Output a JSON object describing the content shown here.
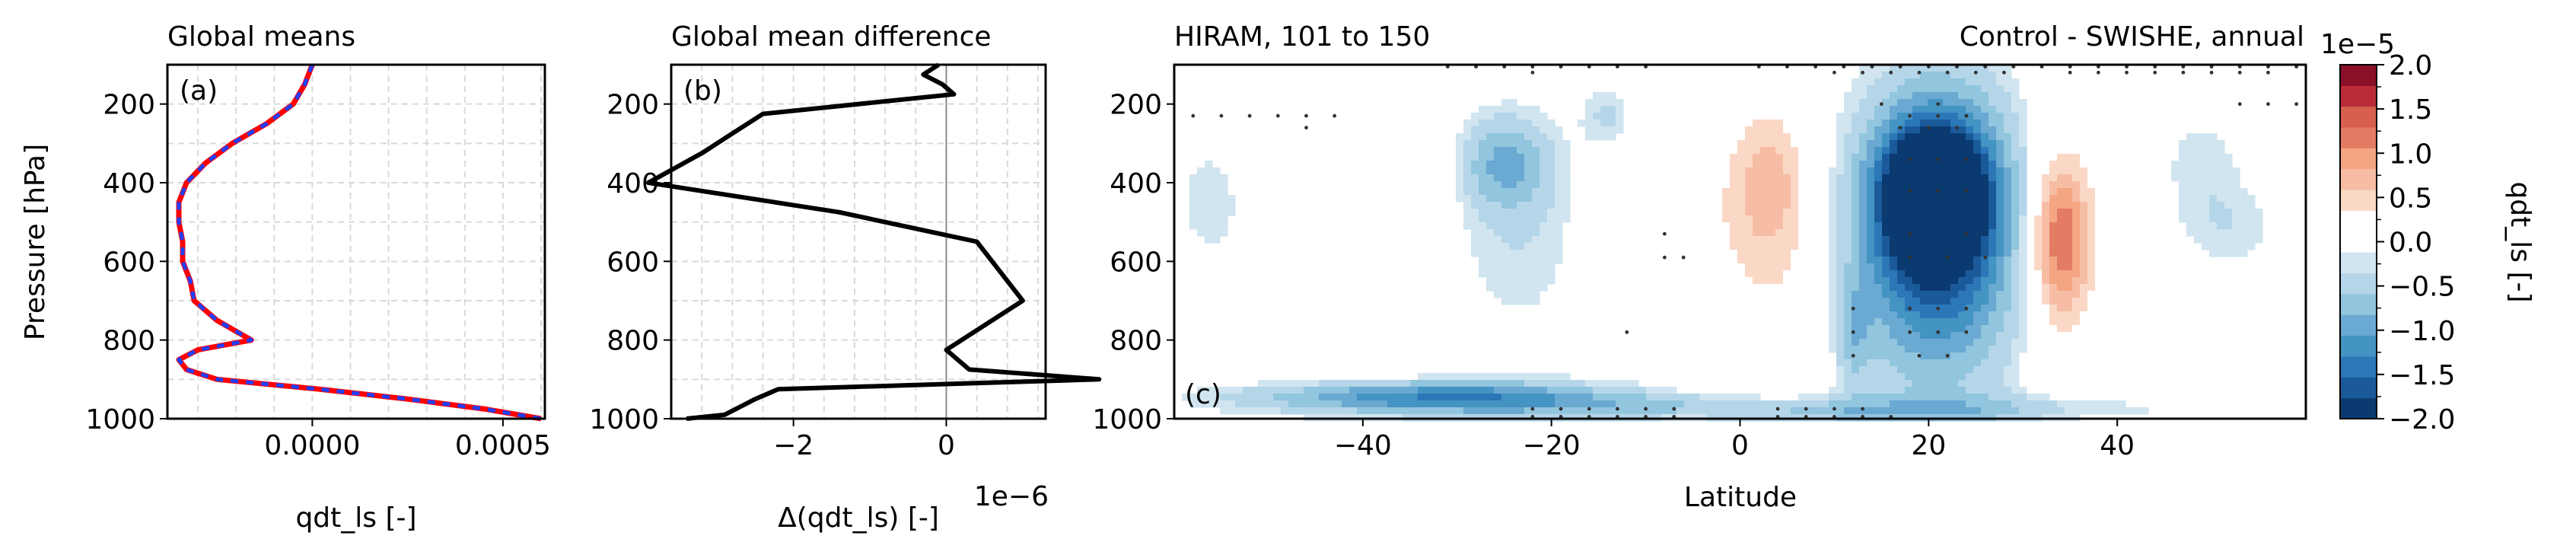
{
  "chart_data": [
    {
      "type": "line",
      "title": "Global means",
      "panel_label": "(a)",
      "xlabel": "qdt_ls [-]",
      "ylabel": "Pressure [hPa]",
      "xlim": [
        -0.00038,
        0.00061
      ],
      "ylim": [
        1000,
        100
      ],
      "xticks": [
        0.0,
        0.0005
      ],
      "xtick_labels": [
        "0.0000",
        "0.0005"
      ],
      "yticks": [
        200,
        400,
        600,
        800,
        1000
      ],
      "grid": true,
      "series": [
        {
          "color": "#ff0000",
          "style": "solid",
          "y": [
            100,
            150,
            200,
            250,
            300,
            350,
            400,
            450,
            500,
            550,
            600,
            650,
            700,
            750,
            800,
            825,
            850,
            875,
            900,
            925,
            950,
            975,
            1000
          ],
          "x": [
            0.0,
            -2e-05,
            -5e-05,
            -0.00012,
            -0.00021,
            -0.00028,
            -0.00033,
            -0.00035,
            -0.00035,
            -0.00034,
            -0.00034,
            -0.00032,
            -0.00031,
            -0.00025,
            -0.00016,
            -0.0003,
            -0.00035,
            -0.00033,
            -0.00025,
            2e-05,
            0.00025,
            0.00045,
            0.0006
          ]
        },
        {
          "color": "#2040ff",
          "style": "dashed",
          "y": [
            100,
            150,
            200,
            250,
            300,
            350,
            400,
            450,
            500,
            550,
            600,
            650,
            700,
            750,
            800,
            825,
            850,
            875,
            900,
            925,
            950,
            975,
            1000
          ],
          "x": [
            0.0,
            -2e-05,
            -5e-05,
            -0.00012,
            -0.00021,
            -0.00028,
            -0.00033,
            -0.00035,
            -0.00035,
            -0.00034,
            -0.00034,
            -0.00032,
            -0.00031,
            -0.00025,
            -0.00016,
            -0.0003,
            -0.00035,
            -0.00033,
            -0.00025,
            2e-05,
            0.00025,
            0.00045,
            0.0006
          ]
        }
      ]
    },
    {
      "type": "line",
      "title": "Global mean difference",
      "panel_label": "(b)",
      "xlabel": "Δ(qdt_ls) [-]",
      "x_offset_label": "1e−6",
      "ylabel": "",
      "xlim": [
        -3.6,
        1.3
      ],
      "ylim": [
        1000,
        100
      ],
      "xticks": [
        -2,
        0
      ],
      "xtick_labels": [
        "−2",
        "0"
      ],
      "yticks": [
        200,
        400,
        600,
        800,
        1000
      ],
      "grid": true,
      "series": [
        {
          "color": "#000000",
          "style": "solid",
          "y": [
            100,
            125,
            150,
            175,
            225,
            275,
            325,
            400,
            475,
            550,
            625,
            700,
            800,
            825,
            875,
            900,
            925,
            950,
            970,
            990,
            1000
          ],
          "x": [
            -0.1,
            -0.3,
            -0.05,
            0.1,
            -2.4,
            -2.8,
            -3.2,
            -3.9,
            -1.4,
            0.4,
            0.7,
            1.0,
            0.2,
            0.0,
            0.3,
            2.0,
            -2.2,
            -2.5,
            -2.7,
            -2.9,
            -3.4
          ]
        }
      ]
    },
    {
      "type": "heatmap",
      "title_left": "HIRAM, 101 to 150",
      "title_right": "Control - SWISHE, annual",
      "panel_label": "(c)",
      "xlabel": "Latitude",
      "ylabel": "",
      "xlim": [
        -60,
        60
      ],
      "ylim": [
        1000,
        100
      ],
      "xticks": [
        -40,
        -20,
        0,
        20,
        40
      ],
      "xtick_labels": [
        "−40",
        "−20",
        "0",
        "20",
        "40"
      ],
      "yticks": [
        200,
        400,
        600,
        800,
        1000
      ],
      "colorbar": {
        "label": "qdt_ls [-]",
        "offset_label": "1e−5",
        "ticks": [
          -2.0,
          -1.5,
          -1.0,
          -0.5,
          0.0,
          0.5,
          1.0,
          1.5,
          2.0
        ],
        "tick_labels": [
          "−2.0",
          "−1.5",
          "−1.0",
          "−0.5",
          "0.0",
          "0.5",
          "1.0",
          "1.5",
          "2.0"
        ],
        "colors": [
          "#0a3a70",
          "#1b5a9a",
          "#2c77b7",
          "#4393c3",
          "#6aa9d1",
          "#92c5de",
          "#b5d6e9",
          "#d1e5f0",
          "#ffffff",
          "#ffffff",
          "#fbd8c6",
          "#f6bda4",
          "#f4a582",
          "#e47c63",
          "#d6604d",
          "#b92c37",
          "#8a0f28"
        ]
      },
      "blobs": [
        {
          "lat": 20.5,
          "p": 420,
          "rlat": 5,
          "rp": 150,
          "value": -1.9
        },
        {
          "lat": 21,
          "p": 470,
          "rlat": 7,
          "rp": 280,
          "value": -1.2
        },
        {
          "lat": 21,
          "p": 530,
          "rlat": 10,
          "rp": 380,
          "value": -0.7
        },
        {
          "lat": 20,
          "p": 600,
          "rlat": 12,
          "rp": 480,
          "value": -0.45
        },
        {
          "lat": -25,
          "p": 350,
          "rlat": 5,
          "rp": 120,
          "value": -0.7
        },
        {
          "lat": -24,
          "p": 520,
          "rlat": 8,
          "rp": 330,
          "value": -0.35
        },
        {
          "lat": -14,
          "p": 230,
          "rlat": 3,
          "rp": 90,
          "value": -0.4
        },
        {
          "lat": -10,
          "p": 640,
          "rlat": 4,
          "rp": 250,
          "value": -0.3
        },
        {
          "lat": -33,
          "p": 940,
          "rlat": 18,
          "rp": 40,
          "value": -0.8
        },
        {
          "lat": -35,
          "p": 950,
          "rlat": 25,
          "rp": 60,
          "value": -0.4
        },
        {
          "lat": -15,
          "p": 965,
          "rlat": 25,
          "rp": 35,
          "value": -0.45
        },
        {
          "lat": 10,
          "p": 985,
          "rlat": 20,
          "rp": 30,
          "value": -0.4
        },
        {
          "lat": 30,
          "p": 970,
          "rlat": 25,
          "rp": 40,
          "value": -0.3
        },
        {
          "lat": 12,
          "p": 780,
          "rlat": 2,
          "rp": 150,
          "value": -0.5
        },
        {
          "lat": -56,
          "p": 450,
          "rlat": 5,
          "rp": 200,
          "value": -0.3
        },
        {
          "lat": 49,
          "p": 350,
          "rlat": 5,
          "rp": 150,
          "value": -0.3
        },
        {
          "lat": 52,
          "p": 520,
          "rlat": 6,
          "rp": 120,
          "value": -0.3
        },
        {
          "lat": 34,
          "p": 540,
          "rlat": 3,
          "rp": 200,
          "value": 1.0
        },
        {
          "lat": 34,
          "p": 560,
          "rlat": 5,
          "rp": 300,
          "value": 0.5
        },
        {
          "lat": 3,
          "p": 400,
          "rlat": 4,
          "rp": 200,
          "value": 0.6
        },
        {
          "lat": -7,
          "p": 540,
          "rlat": 6,
          "rp": 350,
          "value": 0.35
        },
        {
          "lat": 5,
          "p": 620,
          "rlat": 7,
          "rp": 380,
          "value": 0.35
        },
        {
          "lat": -40,
          "p": 400,
          "rlat": 9,
          "rp": 280,
          "value": 0.35
        },
        {
          "lat": -42,
          "p": 800,
          "rlat": 12,
          "rp": 130,
          "value": 0.3
        },
        {
          "lat": 45,
          "p": 880,
          "rlat": 8,
          "rp": 60,
          "value": 0.3
        }
      ]
    }
  ]
}
